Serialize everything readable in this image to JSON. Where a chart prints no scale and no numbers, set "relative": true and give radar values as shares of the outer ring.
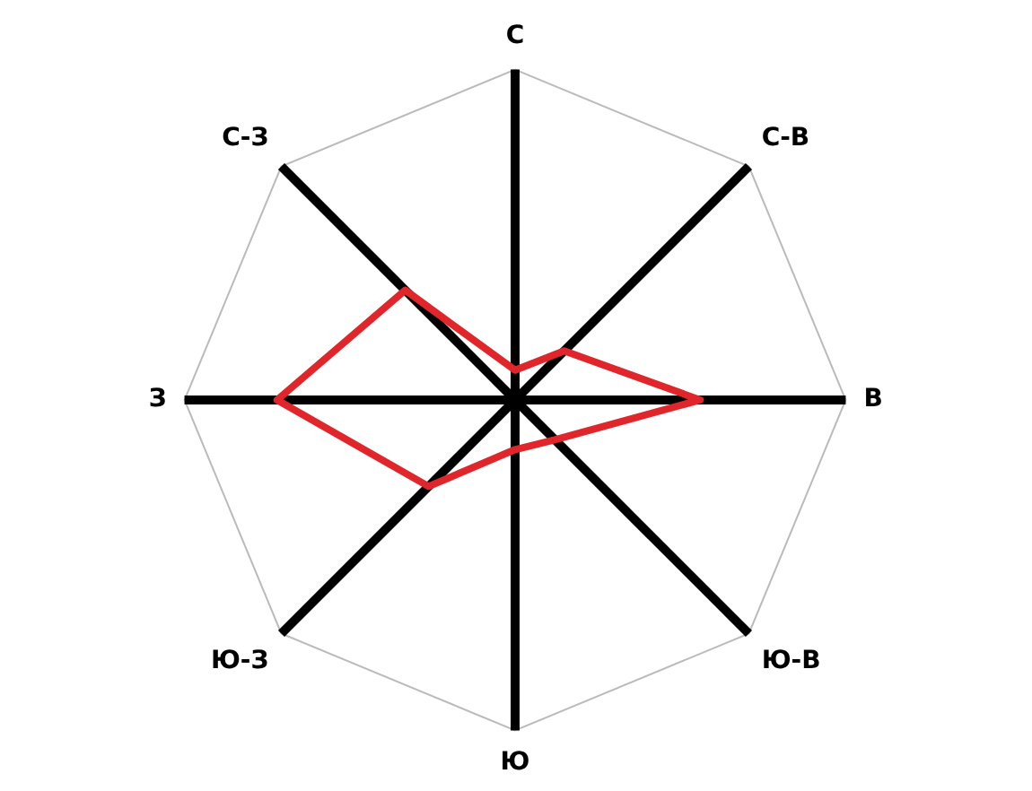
{
  "chart_data": {
    "type": "radar",
    "relative": true,
    "categories": [
      "С",
      "С-В",
      "В",
      "Ю-В",
      "Ю",
      "Ю-З",
      "З",
      "С-З"
    ],
    "values": [
      0.09,
      0.21,
      0.56,
      0.17,
      0.15,
      0.37,
      0.72,
      0.47
    ],
    "color": "#e0262b",
    "marker": "none",
    "line_style": "solid",
    "grid": true
  }
}
